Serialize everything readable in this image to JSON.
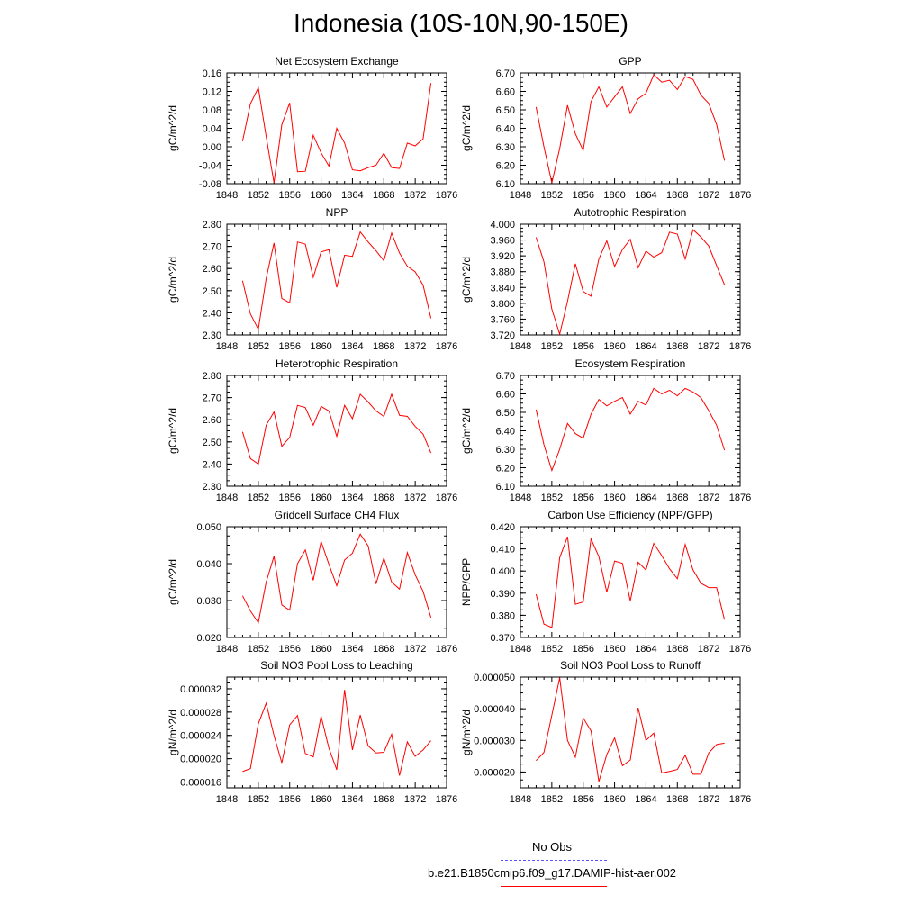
{
  "title": "Indonesia (10S-10N,90-150E)",
  "colors": {
    "series": "#ff0000",
    "obs": "#5555ff"
  },
  "legend": {
    "obs_label": "No Obs",
    "model_label": "b.e21.B1850cmip6.f09_g17.DAMIP-hist-aer.002"
  },
  "chart_data": [
    {
      "type": "line",
      "title": "Net Ecosystem Exchange",
      "ylabel": "gC/m^2/d",
      "xlim": [
        1848,
        1876
      ],
      "ylim": [
        -0.08,
        0.16
      ],
      "xticks": [
        "1848",
        "1852",
        "1856",
        "1860",
        "1864",
        "1868",
        "1872",
        "1876"
      ],
      "yticks": [
        "-0.08",
        "-0.04",
        "0.00",
        "0.04",
        "0.08",
        "0.12",
        "0.16"
      ],
      "series": [
        {
          "x": [
            1850,
            1851,
            1852,
            1853,
            1854,
            1855,
            1856,
            1857,
            1858,
            1859,
            1860,
            1861,
            1862,
            1863,
            1864,
            1865,
            1866,
            1867,
            1868,
            1869,
            1870,
            1871,
            1872,
            1873,
            1874
          ],
          "values": [
            0.012,
            0.093,
            0.128,
            0.022,
            -0.078,
            0.048,
            0.095,
            -0.054,
            -0.053,
            0.025,
            -0.013,
            -0.042,
            0.04,
            0.008,
            -0.05,
            -0.052,
            -0.045,
            -0.04,
            -0.014,
            -0.045,
            -0.047,
            0.008,
            0.002,
            0.017,
            0.138
          ]
        }
      ]
    },
    {
      "type": "line",
      "title": "GPP",
      "ylabel": "gC/m^2/d",
      "xlim": [
        1848,
        1876
      ],
      "ylim": [
        6.1,
        6.7
      ],
      "xticks": [
        "1848",
        "1852",
        "1856",
        "1860",
        "1864",
        "1868",
        "1872",
        "1876"
      ],
      "yticks": [
        "6.10",
        "6.20",
        "6.30",
        "6.40",
        "6.50",
        "6.60",
        "6.70"
      ],
      "series": [
        {
          "x": [
            1850,
            1851,
            1852,
            1853,
            1854,
            1855,
            1856,
            1857,
            1858,
            1859,
            1860,
            1861,
            1862,
            1863,
            1864,
            1865,
            1866,
            1867,
            1868,
            1869,
            1870,
            1871,
            1872,
            1873,
            1874
          ],
          "values": [
            6.515,
            6.3,
            6.105,
            6.29,
            6.525,
            6.37,
            6.28,
            6.545,
            6.625,
            6.515,
            6.57,
            6.625,
            6.48,
            6.56,
            6.59,
            6.69,
            6.65,
            6.66,
            6.61,
            6.68,
            6.665,
            6.58,
            6.535,
            6.42,
            6.225
          ]
        }
      ]
    },
    {
      "type": "line",
      "title": "NPP",
      "ylabel": "gC/m^2/d",
      "xlim": [
        1848,
        1876
      ],
      "ylim": [
        2.3,
        2.8
      ],
      "xticks": [
        "1848",
        "1852",
        "1856",
        "1860",
        "1864",
        "1868",
        "1872",
        "1876"
      ],
      "yticks": [
        "2.30",
        "2.40",
        "2.50",
        "2.60",
        "2.70",
        "2.80"
      ],
      "series": [
        {
          "x": [
            1850,
            1851,
            1852,
            1853,
            1854,
            1855,
            1856,
            1857,
            1858,
            1859,
            1860,
            1861,
            1862,
            1863,
            1864,
            1865,
            1866,
            1867,
            1868,
            1869,
            1870,
            1871,
            1872,
            1873,
            1874
          ],
          "values": [
            2.545,
            2.395,
            2.325,
            2.555,
            2.715,
            2.465,
            2.445,
            2.72,
            2.71,
            2.56,
            2.675,
            2.685,
            2.515,
            2.66,
            2.655,
            2.765,
            2.72,
            2.68,
            2.635,
            2.76,
            2.67,
            2.61,
            2.585,
            2.525,
            2.375
          ]
        }
      ]
    },
    {
      "type": "line",
      "title": "Autotrophic Respiration",
      "ylabel": "gC/m^2/d",
      "xlim": [
        1848,
        1876
      ],
      "ylim": [
        3.72,
        4.0
      ],
      "xticks": [
        "1848",
        "1852",
        "1856",
        "1860",
        "1864",
        "1868",
        "1872",
        "1876"
      ],
      "yticks": [
        "3.720",
        "3.760",
        "3.800",
        "3.840",
        "3.880",
        "3.920",
        "3.960",
        "4.000"
      ],
      "series": [
        {
          "x": [
            1850,
            1851,
            1852,
            1853,
            1854,
            1855,
            1856,
            1857,
            1858,
            1859,
            1860,
            1861,
            1862,
            1863,
            1864,
            1865,
            1866,
            1867,
            1868,
            1869,
            1870,
            1871,
            1872,
            1873,
            1874
          ],
          "values": [
            3.967,
            3.905,
            3.785,
            3.722,
            3.805,
            3.9,
            3.83,
            3.818,
            3.912,
            3.958,
            3.893,
            3.936,
            3.962,
            3.89,
            3.932,
            3.917,
            3.928,
            3.98,
            3.975,
            3.912,
            3.986,
            3.968,
            3.945,
            3.895,
            3.847
          ]
        }
      ]
    },
    {
      "type": "line",
      "title": "Heterotrophic Respiration",
      "ylabel": "gC/m^2/d",
      "xlim": [
        1848,
        1876
      ],
      "ylim": [
        2.3,
        2.8
      ],
      "xticks": [
        "1848",
        "1852",
        "1856",
        "1860",
        "1864",
        "1868",
        "1872",
        "1876"
      ],
      "yticks": [
        "2.30",
        "2.40",
        "2.50",
        "2.60",
        "2.70",
        "2.80"
      ],
      "series": [
        {
          "x": [
            1850,
            1851,
            1852,
            1853,
            1854,
            1855,
            1856,
            1857,
            1858,
            1859,
            1860,
            1861,
            1862,
            1863,
            1864,
            1865,
            1866,
            1867,
            1868,
            1869,
            1870,
            1871,
            1872,
            1873,
            1874
          ],
          "values": [
            2.545,
            2.425,
            2.4,
            2.575,
            2.635,
            2.48,
            2.52,
            2.665,
            2.655,
            2.575,
            2.66,
            2.64,
            2.525,
            2.665,
            2.605,
            2.715,
            2.68,
            2.64,
            2.615,
            2.715,
            2.62,
            2.615,
            2.57,
            2.535,
            2.45
          ]
        }
      ]
    },
    {
      "type": "line",
      "title": "Ecosystem Respiration",
      "ylabel": "gC/m^2/d",
      "xlim": [
        1848,
        1876
      ],
      "ylim": [
        6.1,
        6.7
      ],
      "xticks": [
        "1848",
        "1852",
        "1856",
        "1860",
        "1864",
        "1868",
        "1872",
        "1876"
      ],
      "yticks": [
        "6.10",
        "6.20",
        "6.30",
        "6.40",
        "6.50",
        "6.60",
        "6.70"
      ],
      "series": [
        {
          "x": [
            1850,
            1851,
            1852,
            1853,
            1854,
            1855,
            1856,
            1857,
            1858,
            1859,
            1860,
            1861,
            1862,
            1863,
            1864,
            1865,
            1866,
            1867,
            1868,
            1869,
            1870,
            1871,
            1872,
            1873,
            1874
          ],
          "values": [
            6.515,
            6.325,
            6.185,
            6.3,
            6.44,
            6.385,
            6.36,
            6.49,
            6.57,
            6.535,
            6.56,
            6.58,
            6.49,
            6.56,
            6.54,
            6.63,
            6.6,
            6.62,
            6.59,
            6.63,
            6.61,
            6.58,
            6.51,
            6.43,
            6.295
          ]
        }
      ]
    },
    {
      "type": "line",
      "title": "Gridcell Surface CH4 Flux",
      "ylabel": "gC/m^2/d",
      "xlim": [
        1848,
        1876
      ],
      "ylim": [
        0.02,
        0.05
      ],
      "xticks": [
        "1848",
        "1852",
        "1856",
        "1860",
        "1864",
        "1868",
        "1872",
        "1876"
      ],
      "yticks": [
        "0.020",
        "0.030",
        "0.040",
        "0.050"
      ],
      "series": [
        {
          "x": [
            1850,
            1851,
            1852,
            1853,
            1854,
            1855,
            1856,
            1857,
            1858,
            1859,
            1860,
            1861,
            1862,
            1863,
            1864,
            1865,
            1866,
            1867,
            1868,
            1869,
            1870,
            1871,
            1872,
            1873,
            1874
          ],
          "values": [
            0.0313,
            0.0272,
            0.024,
            0.035,
            0.042,
            0.0288,
            0.0274,
            0.04,
            0.0437,
            0.0355,
            0.046,
            0.0398,
            0.034,
            0.041,
            0.0428,
            0.048,
            0.0448,
            0.0345,
            0.0415,
            0.035,
            0.0331,
            0.043,
            0.037,
            0.0325,
            0.0254
          ]
        }
      ]
    },
    {
      "type": "line",
      "title": "Carbon Use Efficiency (NPP/GPP)",
      "ylabel": "NPP/GPP",
      "xlim": [
        1848,
        1876
      ],
      "ylim": [
        0.37,
        0.42
      ],
      "xticks": [
        "1848",
        "1852",
        "1856",
        "1860",
        "1864",
        "1868",
        "1872",
        "1876"
      ],
      "yticks": [
        "0.370",
        "0.380",
        "0.390",
        "0.400",
        "0.410",
        "0.420"
      ],
      "series": [
        {
          "x": [
            1850,
            1851,
            1852,
            1853,
            1854,
            1855,
            1856,
            1857,
            1858,
            1859,
            1860,
            1861,
            1862,
            1863,
            1864,
            1865,
            1866,
            1867,
            1868,
            1869,
            1870,
            1871,
            1872,
            1873,
            1874
          ],
          "values": [
            0.3895,
            0.376,
            0.3745,
            0.406,
            0.4155,
            0.385,
            0.386,
            0.4145,
            0.4065,
            0.3905,
            0.4045,
            0.4035,
            0.3865,
            0.404,
            0.4005,
            0.4125,
            0.407,
            0.401,
            0.3965,
            0.412,
            0.4005,
            0.3945,
            0.3925,
            0.3925,
            0.378
          ]
        }
      ]
    },
    {
      "type": "line",
      "title": "Soil NO3 Pool Loss to Leaching",
      "ylabel": "gN/m^2/d",
      "xlim": [
        1848,
        1876
      ],
      "ylim": [
        1.5e-05,
        3.4e-05
      ],
      "xticks": [
        "1848",
        "1852",
        "1856",
        "1860",
        "1864",
        "1868",
        "1872",
        "1876"
      ],
      "yticks": [
        "0.000016",
        "0.000020",
        "0.000024",
        "0.000028",
        "0.000032"
      ],
      "ytick_values": [
        1.6e-05,
        2e-05,
        2.4e-05,
        2.8e-05,
        3.2e-05
      ],
      "series": [
        {
          "x": [
            1850,
            1851,
            1852,
            1853,
            1854,
            1855,
            1856,
            1857,
            1858,
            1859,
            1860,
            1861,
            1862,
            1863,
            1864,
            1865,
            1866,
            1867,
            1868,
            1869,
            1870,
            1871,
            1872,
            1873,
            1874
          ],
          "values": [
            1.78e-05,
            1.83e-05,
            2.6e-05,
            2.95e-05,
            2.4e-05,
            1.93e-05,
            2.58e-05,
            2.74e-05,
            2.09e-05,
            2.03e-05,
            2.73e-05,
            2.18e-05,
            1.81e-05,
            3.18e-05,
            2.15e-05,
            2.75e-05,
            2.22e-05,
            2.1e-05,
            2.11e-05,
            2.42e-05,
            1.71e-05,
            2.29e-05,
            2.04e-05,
            2.15e-05,
            2.31e-05
          ]
        }
      ]
    },
    {
      "type": "line",
      "title": "Soil NO3 Pool Loss to Runoff",
      "ylabel": "gN/m^2/d",
      "xlim": [
        1848,
        1876
      ],
      "ylim": [
        1.5e-05,
        5e-05
      ],
      "xticks": [
        "1848",
        "1852",
        "1856",
        "1860",
        "1864",
        "1868",
        "1872",
        "1876"
      ],
      "yticks": [
        "0.000020",
        "0.000030",
        "0.000040",
        "0.000050"
      ],
      "ytick_values": [
        2e-05,
        3e-05,
        4e-05,
        5e-05
      ],
      "series": [
        {
          "x": [
            1850,
            1851,
            1852,
            1853,
            1854,
            1855,
            1856,
            1857,
            1858,
            1859,
            1860,
            1861,
            1862,
            1863,
            1864,
            1865,
            1866,
            1867,
            1868,
            1869,
            1870,
            1871,
            1872,
            1873,
            1874
          ],
          "values": [
            2.36e-05,
            2.62e-05,
            3.8e-05,
            4.98e-05,
            3e-05,
            2.47e-05,
            3.71e-05,
            3.3e-05,
            1.7e-05,
            2.55e-05,
            3.08e-05,
            2.2e-05,
            2.38e-05,
            4.03e-05,
            3e-05,
            3.23e-05,
            1.97e-05,
            2.02e-05,
            2.08e-05,
            2.53e-05,
            1.93e-05,
            1.93e-05,
            2.6e-05,
            2.87e-05,
            2.91e-05
          ]
        }
      ]
    }
  ]
}
